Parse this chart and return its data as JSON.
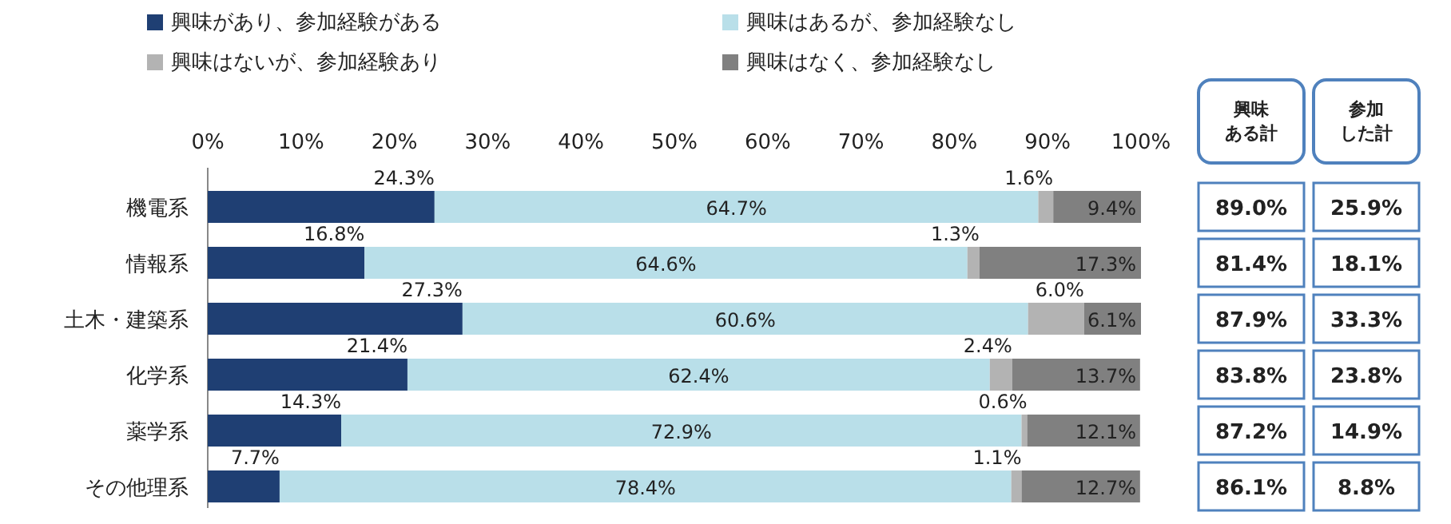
{
  "chart_data": [
    {
      "type": "bar",
      "orientation": "horizontal",
      "stacked": true,
      "legend": "top",
      "grid": false,
      "categories": [
        "機電系",
        "情報系",
        "土木・建築系",
        "化学系",
        "薬学系",
        "その他理系"
      ],
      "xlim": [
        0,
        100
      ],
      "xticks": [
        {
          "value": 0,
          "label": "0%"
        },
        {
          "value": 10,
          "label": "10%"
        },
        {
          "value": 20,
          "label": "20%"
        },
        {
          "value": 30,
          "label": "30%"
        },
        {
          "value": 40,
          "label": "40%"
        },
        {
          "value": 50,
          "label": "50%"
        },
        {
          "value": 60,
          "label": "60%"
        },
        {
          "value": 70,
          "label": "70%"
        },
        {
          "value": 80,
          "label": "80%"
        },
        {
          "value": 90,
          "label": "90%"
        },
        {
          "value": 100,
          "label": "100%"
        }
      ],
      "series": [
        {
          "name": "興味があり、参加経験がある",
          "color": "#1f3f73",
          "values": [
            24.3,
            16.8,
            27.3,
            21.4,
            14.3,
            7.7
          ],
          "value_labels": [
            "24.3%",
            "16.8%",
            "27.3%",
            "21.4%",
            "14.3%",
            "7.7%"
          ]
        },
        {
          "name": "興味はあるが、参加経験なし",
          "color": "#b9dfe9",
          "values": [
            64.7,
            64.6,
            60.6,
            62.4,
            72.9,
            78.4
          ],
          "value_labels": [
            "64.7%",
            "64.6%",
            "60.6%",
            "62.4%",
            "72.9%",
            "78.4%"
          ]
        },
        {
          "name": "興味はないが、参加経験あり",
          "color": "#b3b3b3",
          "values": [
            1.6,
            1.3,
            6.0,
            2.4,
            0.6,
            1.1
          ],
          "value_labels": [
            "1.6%",
            "1.3%",
            "6.0%",
            "2.4%",
            "0.6%",
            "1.1%"
          ]
        },
        {
          "name": "興味はなく、参加経験なし",
          "color": "#808080",
          "values": [
            9.4,
            17.3,
            6.1,
            13.7,
            12.1,
            12.7
          ],
          "value_labels": [
            "9.4%",
            "17.3%",
            "6.1%",
            "13.7%",
            "12.1%",
            "12.7%"
          ]
        }
      ]
    },
    {
      "type": "other",
      "categories": [
        "興味ある計",
        "参加した計"
      ],
      "cell_labels": [
        [
          "89.0%",
          "25.9%"
        ],
        [
          "81.4%",
          "18.1%"
        ],
        [
          "87.9%",
          "33.3%"
        ],
        [
          "83.8%",
          "23.8%"
        ],
        [
          "87.2%",
          "14.9%"
        ],
        [
          "86.1%",
          "8.8%"
        ]
      ]
    }
  ]
}
